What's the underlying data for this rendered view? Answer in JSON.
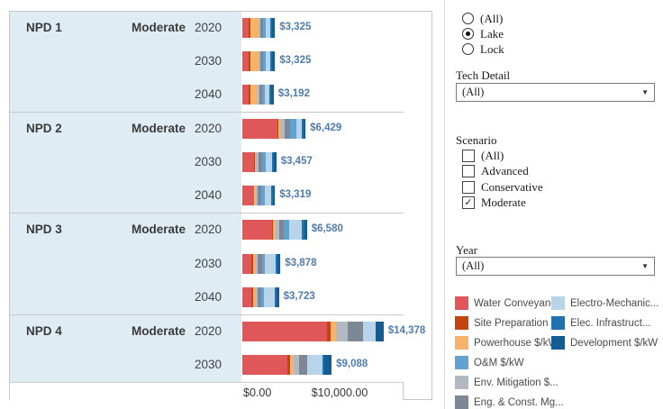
{
  "palette": {
    "water": "#e05759",
    "site": "#c3440e",
    "powerhouse": "#f8b36a",
    "env": "#b2b9c2",
    "eng": "#7e8795",
    "om": "#60a3d0",
    "electro": "#b7d4ea",
    "elec": "#1f72ad",
    "dev": "#135d94",
    "value_label": "#4f7cac",
    "row_bg": "#dfecf4"
  },
  "chart_data": {
    "type": "bar",
    "stacked": true,
    "orientation": "horizontal",
    "unit": "$/kW",
    "axis": {
      "ticks": [
        "$0.00",
        "$10,000.00"
      ],
      "tick_values": [
        0,
        10000
      ],
      "max": 16500,
      "grid": false
    },
    "segment_order": [
      "water",
      "site",
      "powerhouse",
      "env",
      "eng",
      "om",
      "electro",
      "elec",
      "dev"
    ],
    "groups": [
      {
        "plant": "NPD 1",
        "scenario": "Moderate",
        "rows": [
          {
            "year": "2020",
            "total": 3325,
            "label": "$3,325",
            "segments": [
              650,
              180,
              800,
              180,
              270,
              350,
              450,
              150,
              295
            ]
          },
          {
            "year": "2030",
            "total": 3325,
            "label": "$3,325",
            "segments": [
              650,
              180,
              800,
              180,
              270,
              350,
              450,
              150,
              295
            ]
          },
          {
            "year": "2040",
            "total": 3192,
            "label": "$3,192",
            "segments": [
              620,
              175,
              770,
              175,
              260,
              335,
              430,
              145,
              282
            ]
          }
        ]
      },
      {
        "plant": "NPD 2",
        "scenario": "Moderate",
        "rows": [
          {
            "year": "2020",
            "total": 6429,
            "label": "$6,429",
            "segments": [
              3600,
              100,
              120,
              480,
              600,
              640,
              520,
              170,
              199
            ]
          },
          {
            "year": "2030",
            "total": 3457,
            "label": "$3,457",
            "segments": [
              1200,
              90,
              110,
              260,
              330,
              380,
              700,
              180,
              207
            ]
          },
          {
            "year": "2040",
            "total": 3319,
            "label": "$3,319",
            "segments": [
              1150,
              85,
              105,
              250,
              320,
              370,
              670,
              170,
              199
            ]
          }
        ]
      },
      {
        "plant": "NPD 3",
        "scenario": "Moderate",
        "rows": [
          {
            "year": "2020",
            "total": 6580,
            "label": "$6,580",
            "segments": [
              3000,
              160,
              270,
              330,
              420,
              620,
              1250,
              250,
              280
            ]
          },
          {
            "year": "2030",
            "total": 3878,
            "label": "$3,878",
            "segments": [
              950,
              170,
              200,
              280,
              380,
              300,
              1150,
              190,
              258
            ]
          },
          {
            "year": "2040",
            "total": 3723,
            "label": "$3,723",
            "segments": [
              900,
              160,
              190,
              270,
              370,
              290,
              1100,
              185,
              258
            ]
          }
        ]
      },
      {
        "plant": "NPD 4",
        "scenario": "Moderate",
        "rows": [
          {
            "year": "2020",
            "total": 14378,
            "label": "$14,378",
            "segments": [
              8600,
              370,
              550,
              1190,
              1560,
              0,
              1280,
              0,
              828
            ]
          },
          {
            "year": "2030",
            "total": 9088,
            "label": "$9,088",
            "segments": [
              4600,
              300,
              320,
              520,
              900,
              0,
              1500,
              250,
              698
            ]
          }
        ]
      }
    ]
  },
  "filters": {
    "waterway": {
      "options": [
        "(All)",
        "Lake",
        "Lock"
      ],
      "selected": "Lake"
    },
    "tech_detail": {
      "label": "Tech Detail",
      "value": "(All)"
    },
    "scenario": {
      "label": "Scenario",
      "options": [
        "(All)",
        "Advanced",
        "Conservative",
        "Moderate"
      ],
      "checked": [
        "Moderate"
      ]
    },
    "year": {
      "label": "Year",
      "value": "(All)"
    }
  },
  "legend": {
    "column1": [
      {
        "label": "Water Conveyanc...",
        "key": "water"
      },
      {
        "label": "Site Preparation ...",
        "key": "site"
      },
      {
        "label": "Powerhouse $/kW",
        "key": "powerhouse"
      },
      {
        "label": "O&M $/kW",
        "key": "om"
      },
      {
        "label": "Env. Mitigation $...",
        "key": "env"
      },
      {
        "label": "Eng. & Const. Mg...",
        "key": "eng"
      }
    ],
    "column2": [
      {
        "label": "Electro-Mechanic...",
        "key": "electro"
      },
      {
        "label": "Elec. Infrastruct...",
        "key": "elec"
      },
      {
        "label": "Development $/kW",
        "key": "dev"
      }
    ]
  }
}
